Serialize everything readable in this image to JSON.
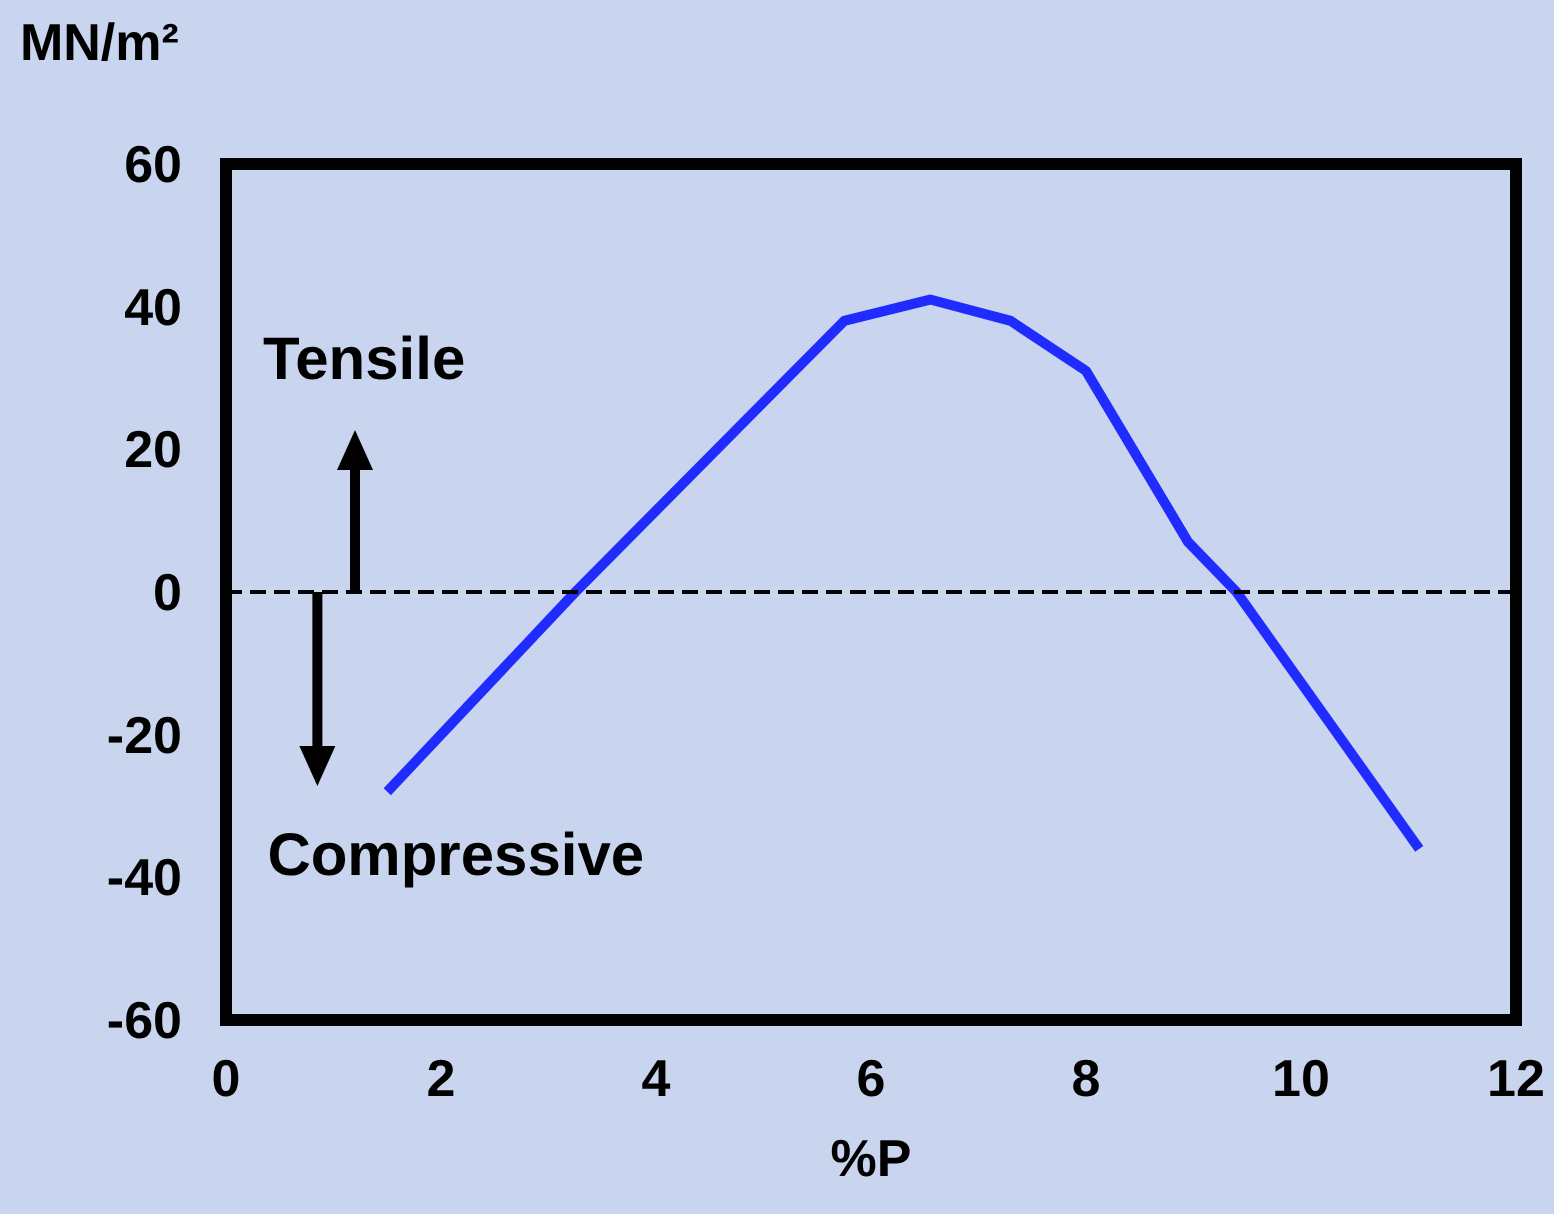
{
  "chart_data": {
    "type": "line",
    "xlabel": "%P",
    "ylabel": "MN/m²",
    "x": [
      1.5,
      3.25,
      5.75,
      6.55,
      7.3,
      8.0,
      8.95,
      9.4,
      11.1
    ],
    "series": [
      {
        "color": "#1f2bff",
        "values": [
          -28,
          0,
          38,
          41,
          38,
          31,
          7,
          0,
          -36
        ]
      }
    ],
    "xlim": [
      0,
      12
    ],
    "xticks": [
      0,
      2,
      4,
      6,
      8,
      10,
      12
    ],
    "ylim": [
      -60,
      60
    ],
    "yticks": [
      -60,
      -40,
      -20,
      0,
      20,
      40,
      60
    ],
    "ref_lines": [
      {
        "axis": "y",
        "value": 0,
        "color": "#000000",
        "line_style": "dashed"
      }
    ],
    "annotations": [
      {
        "text": "Tensile",
        "x": 1.2,
        "y": 0
      },
      {
        "text": "Compressive",
        "x": 0.85,
        "y": 0
      }
    ],
    "grid": false,
    "marker": "none",
    "line_style": "solid"
  }
}
